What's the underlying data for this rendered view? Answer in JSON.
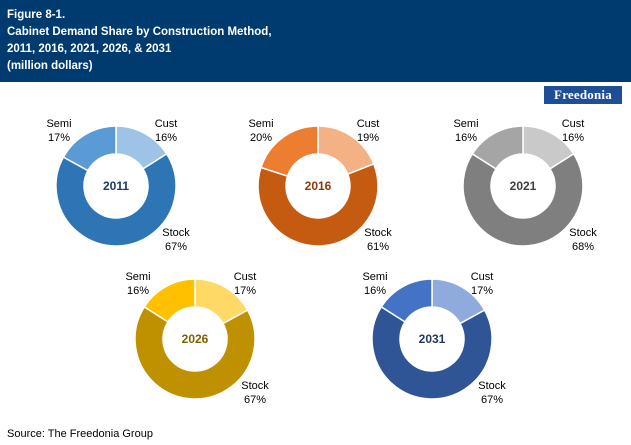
{
  "header": {
    "figure_label": "Figure 8-1.",
    "title_line1": "Cabinet Demand Share by Construction Method,",
    "title_line2": "2011, 2016, 2021, 2026, & 2031",
    "title_line3": "(million dollars)"
  },
  "logo": {
    "text": "Freedonia"
  },
  "source": "Source: The Freedonia Group",
  "colors": {
    "header_bg": "#003b6f",
    "2011": {
      "cust": "#9dc3e6",
      "semi": "#5b9bd5",
      "stock": "#2e75b6",
      "label": "#1f3864"
    },
    "2016": {
      "cust": "#f4b183",
      "semi": "#ed7d31",
      "stock": "#c55a11",
      "label": "#843c0c"
    },
    "2021": {
      "cust": "#c9c9c9",
      "semi": "#a5a5a5",
      "stock": "#7f7f7f",
      "label": "#404040"
    },
    "2026": {
      "cust": "#ffd966",
      "semi": "#ffc000",
      "stock": "#bf9000",
      "label": "#7f6000"
    },
    "2031": {
      "cust": "#8faadc",
      "semi": "#4472c4",
      "stock": "#2f5597",
      "label": "#1f3864"
    }
  },
  "chart_data": [
    {
      "type": "pie",
      "year": "2011",
      "categories": [
        "Cust",
        "Stock",
        "Semi"
      ],
      "values": [
        16,
        67,
        17
      ],
      "labels": {
        "cust_name": "Cust",
        "cust_pct": "16%",
        "stock_name": "Stock",
        "stock_pct": "67%",
        "semi_name": "Semi",
        "semi_pct": "17%"
      }
    },
    {
      "type": "pie",
      "year": "2016",
      "categories": [
        "Cust",
        "Stock",
        "Semi"
      ],
      "values": [
        19,
        61,
        20
      ],
      "labels": {
        "cust_name": "Cust",
        "cust_pct": "19%",
        "stock_name": "Stock",
        "stock_pct": "61%",
        "semi_name": "Semi",
        "semi_pct": "20%"
      }
    },
    {
      "type": "pie",
      "year": "2021",
      "categories": [
        "Cust",
        "Stock",
        "Semi"
      ],
      "values": [
        16,
        68,
        16
      ],
      "labels": {
        "cust_name": "Cust",
        "cust_pct": "16%",
        "stock_name": "Stock",
        "stock_pct": "68%",
        "semi_name": "Semi",
        "semi_pct": "16%"
      }
    },
    {
      "type": "pie",
      "year": "2026",
      "categories": [
        "Cust",
        "Stock",
        "Semi"
      ],
      "values": [
        17,
        67,
        16
      ],
      "labels": {
        "cust_name": "Cust",
        "cust_pct": "17%",
        "stock_name": "Stock",
        "stock_pct": "67%",
        "semi_name": "Semi",
        "semi_pct": "16%"
      }
    },
    {
      "type": "pie",
      "year": "2031",
      "categories": [
        "Cust",
        "Stock",
        "Semi"
      ],
      "values": [
        17,
        67,
        16
      ],
      "labels": {
        "cust_name": "Cust",
        "cust_pct": "17%",
        "stock_name": "Stock",
        "stock_pct": "67%",
        "semi_name": "Semi",
        "semi_pct": "16%"
      }
    }
  ]
}
